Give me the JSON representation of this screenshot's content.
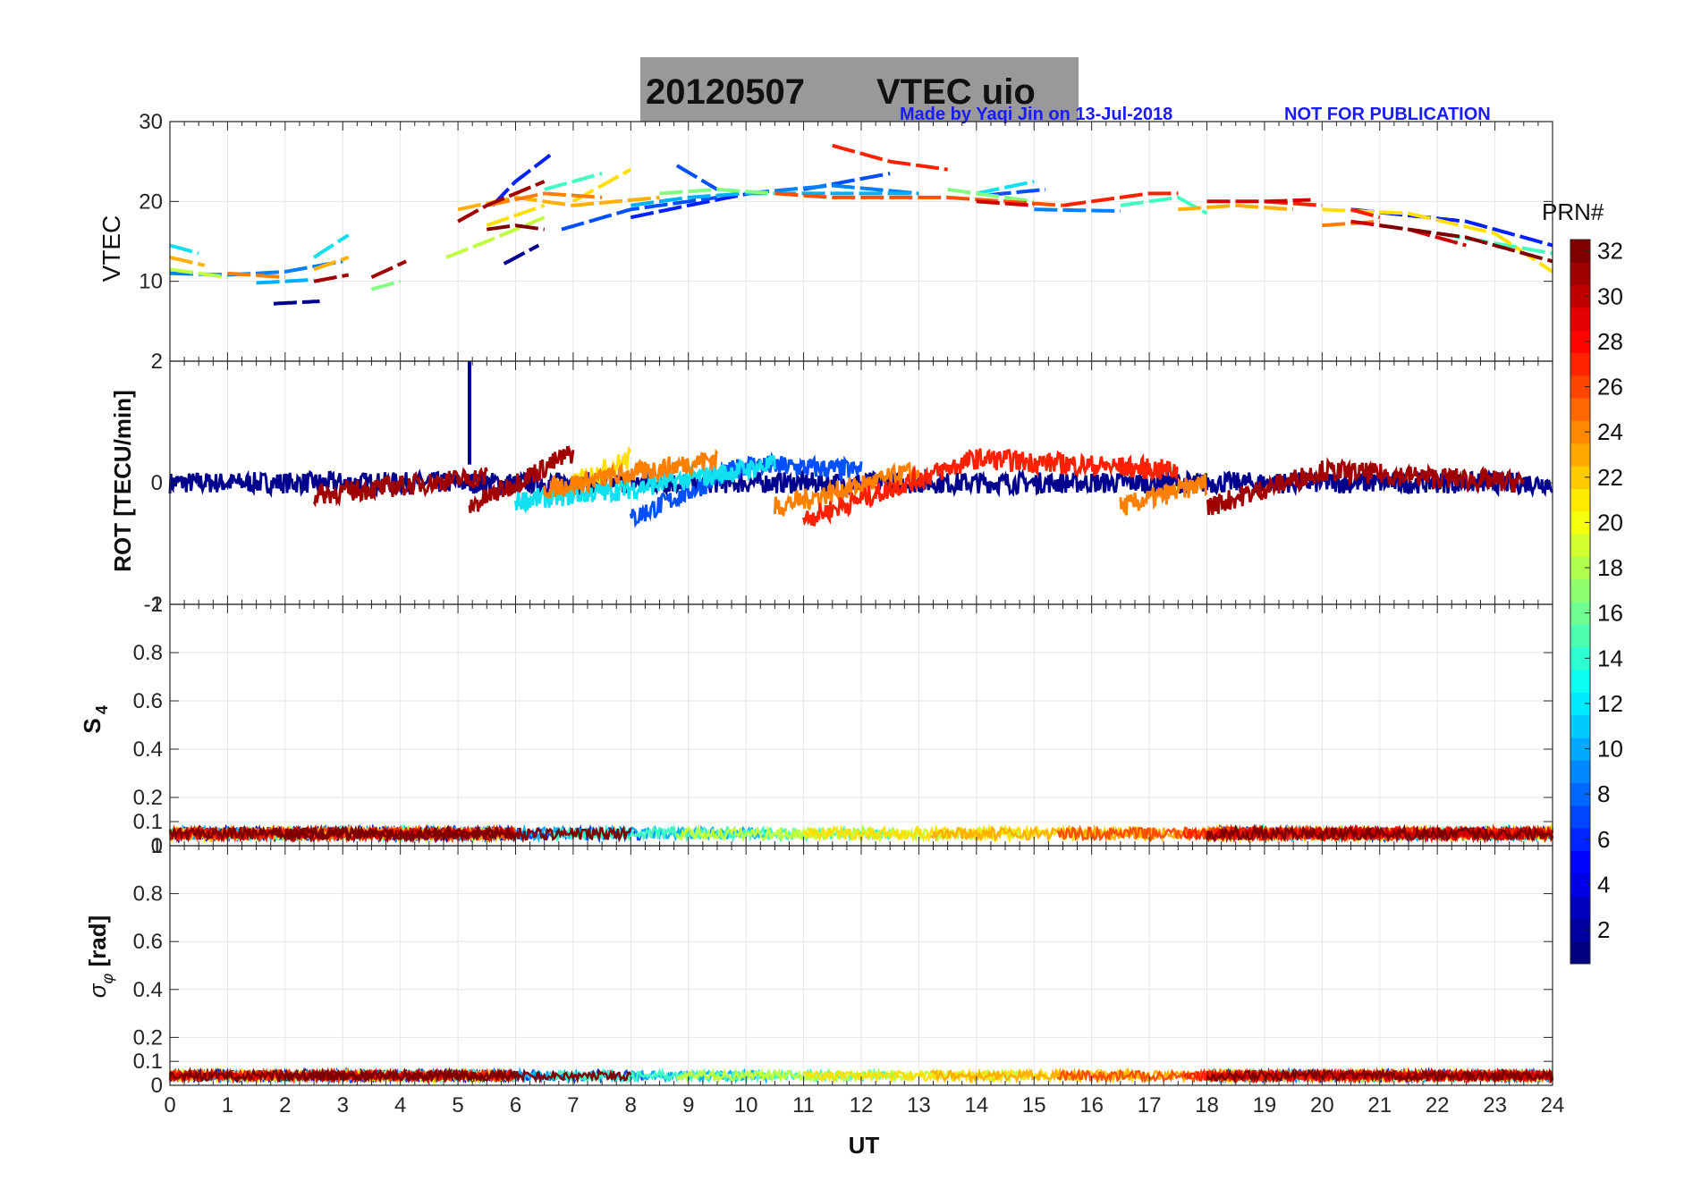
{
  "figure": {
    "title_date": "20120507",
    "title_text": "VTEC  uio",
    "credit_left": "Made by Yaqi Jin on 13-Jul-2018",
    "credit_right": "NOT FOR PUBLICATION",
    "colorbar_title": "PRN#",
    "colorbar_ticks": [
      "2",
      "4",
      "6",
      "8",
      "10",
      "12",
      "14",
      "16",
      "18",
      "20",
      "22",
      "24",
      "26",
      "28",
      "30",
      "32"
    ],
    "colorbar_range": [
      1,
      32
    ]
  },
  "chart_data": [
    {
      "type": "line",
      "panel": "vtec",
      "ylabel": "VTEC",
      "ylim": [
        0,
        30
      ],
      "yticks": [
        "10",
        "20",
        "30"
      ],
      "xlim": [
        0,
        24
      ],
      "series": [
        {
          "prn": 1,
          "color": "#00008f",
          "segments": [
            [
              [
                5.8,
                12.2
              ],
              [
                6.4,
                14.5
              ]
            ],
            [
              [
                1.8,
                7.2
              ],
              [
                2.6,
                7.5
              ]
            ]
          ]
        },
        {
          "prn": 4,
          "color": "#0020ff",
          "segments": [
            [
              [
                5.6,
                19.5
              ],
              [
                6.0,
                22.5
              ],
              [
                6.6,
                25.8
              ]
            ],
            [
              [
                8.0,
                18.0
              ],
              [
                9.0,
                19.5
              ],
              [
                10.2,
                21.2
              ]
            ],
            [
              [
                20.5,
                19.0
              ],
              [
                22.5,
                17.5
              ],
              [
                24.0,
                14.5
              ]
            ]
          ]
        },
        {
          "prn": 7,
          "color": "#0050ff",
          "segments": [
            [
              [
                6.8,
                16.5
              ],
              [
                8.0,
                19.0
              ],
              [
                9.5,
                20.5
              ]
            ],
            [
              [
                8.8,
                24.5
              ],
              [
                9.5,
                21.5
              ]
            ],
            [
              [
                11.0,
                21.5
              ],
              [
                12.5,
                23.5
              ]
            ],
            [
              [
                14.2,
                20.8
              ],
              [
                15.2,
                21.5
              ]
            ]
          ]
        },
        {
          "prn": 9,
          "color": "#0080ff",
          "segments": [
            [
              [
                0.0,
                11.0
              ],
              [
                1.0,
                10.8
              ],
              [
                2.0,
                11.2
              ],
              [
                3.0,
                12.5
              ]
            ],
            [
              [
                10.0,
                21.0
              ],
              [
                11.5,
                22.0
              ],
              [
                13.0,
                21.0
              ]
            ],
            [
              [
                15.0,
                19.0
              ],
              [
                16.5,
                18.8
              ]
            ]
          ]
        },
        {
          "prn": 11,
          "color": "#00b0ff",
          "segments": [
            [
              [
                8.0,
                19.5
              ],
              [
                9.0,
                20.5
              ],
              [
                10.0,
                21.0
              ],
              [
                11.5,
                21.0
              ],
              [
                13.0,
                21.0
              ]
            ],
            [
              [
                1.5,
                9.8
              ],
              [
                2.5,
                10.2
              ]
            ]
          ]
        },
        {
          "prn": 13,
          "color": "#10e0f0",
          "segments": [
            [
              [
                0.0,
                14.5
              ],
              [
                0.5,
                13.5
              ]
            ],
            [
              [
                2.5,
                13.0
              ],
              [
                3.1,
                15.8
              ]
            ],
            [
              [
                14.0,
                21.0
              ],
              [
                15.0,
                22.5
              ]
            ]
          ]
        },
        {
          "prn": 15,
          "color": "#40ffc0",
          "segments": [
            [
              [
                16.5,
                19.5
              ],
              [
                17.5,
                20.5
              ],
              [
                18.0,
                18.5
              ]
            ],
            [
              [
                6.5,
                21.5
              ],
              [
                7.5,
                23.5
              ]
            ],
            [
              [
                22.0,
                16.0
              ],
              [
                24.0,
                13.5
              ]
            ]
          ]
        },
        {
          "prn": 17,
          "color": "#80ff80",
          "segments": [
            [
              [
                3.5,
                9.0
              ],
              [
                4.0,
                10.0
              ]
            ],
            [
              [
                8.5,
                21.0
              ],
              [
                9.5,
                21.5
              ],
              [
                10.5,
                21.0
              ]
            ],
            [
              [
                13.5,
                21.5
              ],
              [
                15.0,
                20.0
              ]
            ]
          ]
        },
        {
          "prn": 19,
          "color": "#c0ff40",
          "segments": [
            [
              [
                4.8,
                13.0
              ],
              [
                5.5,
                15.0
              ],
              [
                6.5,
                18.0
              ]
            ],
            [
              [
                0.0,
                11.5
              ],
              [
                1.0,
                10.5
              ]
            ]
          ]
        },
        {
          "prn": 21,
          "color": "#ffe000",
          "segments": [
            [
              [
                5.5,
                17.0
              ],
              [
                6.5,
                19.5
              ]
            ],
            [
              [
                7.0,
                20.0
              ],
              [
                8.0,
                24.0
              ]
            ],
            [
              [
                20.0,
                19.0
              ],
              [
                21.5,
                18.5
              ],
              [
                23.0,
                16.0
              ],
              [
                24.0,
                11.2
              ]
            ]
          ]
        },
        {
          "prn": 22,
          "color": "#ffb000",
          "segments": [
            [
              [
                0.0,
                13.0
              ],
              [
                0.6,
                12.0
              ]
            ],
            [
              [
                2.5,
                11.5
              ],
              [
                3.1,
                13.0
              ]
            ],
            [
              [
                5.0,
                19.0
              ],
              [
                6.0,
                20.5
              ],
              [
                7.0,
                19.5
              ],
              [
                8.5,
                20.5
              ]
            ],
            [
              [
                17.5,
                19.0
              ],
              [
                18.5,
                19.5
              ],
              [
                19.5,
                19.0
              ]
            ]
          ]
        },
        {
          "prn": 24,
          "color": "#ff8000",
          "segments": [
            [
              [
                1.0,
                11.0
              ],
              [
                2.0,
                10.5
              ]
            ],
            [
              [
                5.5,
                19.5
              ],
              [
                6.5,
                21.0
              ],
              [
                7.5,
                20.5
              ]
            ],
            [
              [
                20.0,
                17.0
              ],
              [
                21.0,
                17.5
              ]
            ]
          ]
        },
        {
          "prn": 26,
          "color": "#ff5000",
          "segments": [
            [
              [
                10.5,
                21.0
              ],
              [
                11.5,
                20.5
              ],
              [
                12.5,
                20.5
              ],
              [
                13.5,
                20.5
              ],
              [
                14.5,
                20.0
              ],
              [
                15.5,
                19.5
              ]
            ]
          ]
        },
        {
          "prn": 27,
          "color": "#ff2000",
          "segments": [
            [
              [
                11.5,
                27.0
              ],
              [
                12.5,
                25.0
              ],
              [
                13.5,
                24.0
              ]
            ],
            [
              [
                15.5,
                19.5
              ],
              [
                16.5,
                20.5
              ],
              [
                17.0,
                21.0
              ],
              [
                17.5,
                21.0
              ]
            ],
            [
              [
                19.0,
                20.0
              ],
              [
                20.0,
                19.5
              ]
            ],
            [
              [
                20.5,
                19.0
              ],
              [
                21.0,
                18.0
              ]
            ]
          ]
        },
        {
          "prn": 29,
          "color": "#d00000",
          "segments": [
            [
              [
                14.0,
                20.0
              ],
              [
                15.0,
                19.5
              ]
            ],
            [
              [
                18.0,
                20.0
              ],
              [
                19.0,
                20.0
              ],
              [
                19.8,
                20.2
              ]
            ],
            [
              [
                20.5,
                17.5
              ],
              [
                21.5,
                16.5
              ],
              [
                22.5,
                14.5
              ]
            ]
          ]
        },
        {
          "prn": 31,
          "color": "#a00000",
          "segments": [
            [
              [
                5.0,
                17.5
              ],
              [
                5.5,
                19.5
              ],
              [
                6.0,
                21.0
              ],
              [
                6.5,
                22.5
              ]
            ],
            [
              [
                2.5,
                10.0
              ],
              [
                3.1,
                10.8
              ]
            ],
            [
              [
                3.5,
                10.5
              ],
              [
                4.1,
                12.5
              ]
            ]
          ]
        },
        {
          "prn": 32,
          "color": "#7f0000",
          "segments": [
            [
              [
                5.5,
                16.5
              ],
              [
                6.0,
                17.0
              ],
              [
                6.5,
                16.5
              ]
            ],
            [
              [
                21.0,
                17.0
              ],
              [
                22.5,
                15.5
              ],
              [
                24.0,
                12.5
              ]
            ]
          ]
        }
      ]
    },
    {
      "type": "line",
      "panel": "rot",
      "ylabel": "ROT [TECU/min]",
      "ylim": [
        -2,
        2
      ],
      "yticks": [
        "-2",
        "0",
        "2"
      ],
      "xlim": [
        0,
        24
      ],
      "series": [
        {
          "prn": 1,
          "color": "#00008f",
          "segments": [
            [
              [
                0.0,
                0.0
              ],
              [
                24.0,
                0.0
              ]
            ]
          ],
          "spike": [
            5.2,
            2.0
          ]
        },
        {
          "prn": 7,
          "color": "#0050ff",
          "segments": [
            [
              [
                8.0,
                -0.6
              ],
              [
                10.0,
                0.3
              ],
              [
                12.0,
                0.2
              ]
            ]
          ]
        },
        {
          "prn": 13,
          "color": "#10e0f0",
          "segments": [
            [
              [
                6.0,
                -0.3
              ],
              [
                8.0,
                -0.1
              ],
              [
                10.5,
                0.3
              ]
            ]
          ]
        },
        {
          "prn": 21,
          "color": "#ffe000",
          "segments": [
            [
              [
                7.0,
                0.0
              ],
              [
                8.0,
                0.4
              ]
            ]
          ]
        },
        {
          "prn": 24,
          "color": "#ff8000",
          "segments": [
            [
              [
                6.5,
                -0.1
              ],
              [
                9.5,
                0.4
              ]
            ],
            [
              [
                10.5,
                -0.4
              ],
              [
                13.0,
                0.2
              ]
            ],
            [
              [
                16.5,
                -0.4
              ],
              [
                18.0,
                0.0
              ]
            ]
          ]
        },
        {
          "prn": 27,
          "color": "#ff2000",
          "segments": [
            [
              [
                11.0,
                -0.6
              ],
              [
                14.0,
                0.4
              ],
              [
                17.5,
                0.2
              ]
            ]
          ]
        },
        {
          "prn": 31,
          "color": "#a00000",
          "segments": [
            [
              [
                2.5,
                -0.2
              ],
              [
                5.5,
                0.1
              ]
            ],
            [
              [
                5.2,
                -0.4
              ],
              [
                7.0,
                0.5
              ]
            ],
            [
              [
                18.0,
                -0.4
              ],
              [
                20.0,
                0.2
              ],
              [
                23.5,
                0.0
              ]
            ]
          ]
        }
      ]
    },
    {
      "type": "line",
      "panel": "s4",
      "ylabel": "S4",
      "ylim": [
        0,
        1
      ],
      "yticks": [
        "0",
        "0.1",
        "0.2",
        "0.4",
        "0.6",
        "0.8",
        "1"
      ],
      "xlim": [
        0,
        24
      ],
      "baseline": 0.05,
      "noise": 0.05
    },
    {
      "type": "line",
      "panel": "sigma_phi",
      "ylabel": "σφ [rad]",
      "ylim": [
        0,
        1
      ],
      "yticks": [
        "0",
        "0.1",
        "0.2",
        "0.4",
        "0.6",
        "0.8",
        "1"
      ],
      "xlim": [
        0,
        24
      ],
      "xticks": [
        "0",
        "1",
        "2",
        "3",
        "4",
        "5",
        "6",
        "7",
        "8",
        "9",
        "10",
        "11",
        "12",
        "13",
        "14",
        "15",
        "16",
        "17",
        "18",
        "19",
        "20",
        "21",
        "22",
        "23",
        "24"
      ],
      "xlabel": "UT",
      "baseline": 0.04,
      "noise": 0.04
    }
  ]
}
